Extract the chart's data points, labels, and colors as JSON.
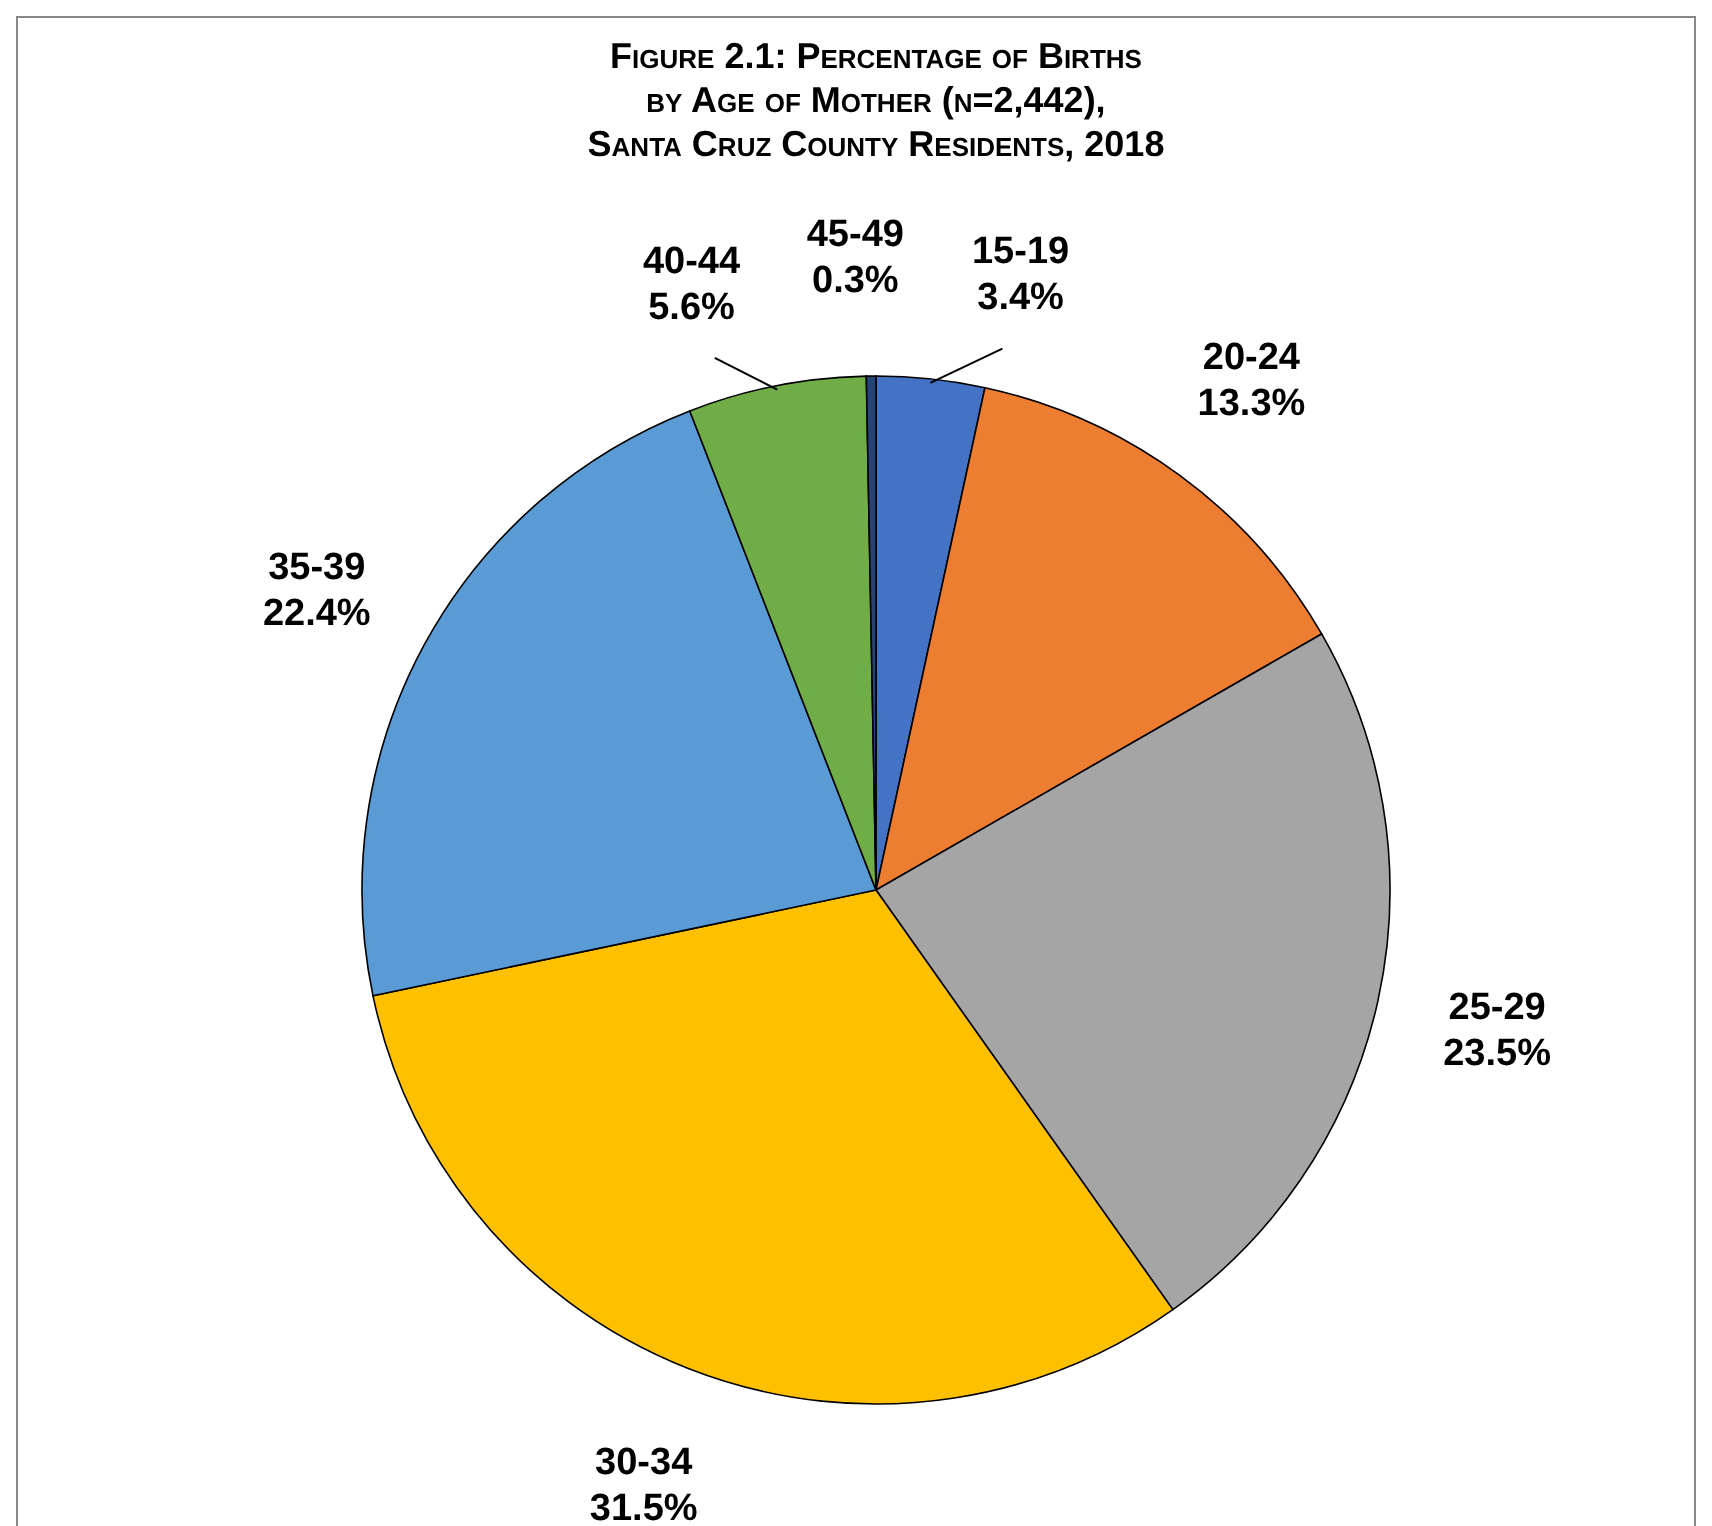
{
  "chart_data": {
    "type": "pie",
    "title": "Figure 2.1:  Percentage of Births\nby Age of Mother (n=2,442),\nSanta Cruz County Residents, 2018",
    "categories": [
      "15-19",
      "20-24",
      "25-29",
      "30-34",
      "35-39",
      "40-44",
      "45-49"
    ],
    "values": [
      3.4,
      13.3,
      23.5,
      31.5,
      22.4,
      5.6,
      0.3
    ],
    "value_labels": [
      "3.4%",
      "13.3%",
      "23.5%",
      "31.5%",
      "22.4%",
      "5.6%",
      "0.3%"
    ],
    "colors": [
      "#4472c4",
      "#ed7d31",
      "#a5a5a5",
      "#ffc000",
      "#5b9bd5",
      "#70ad47",
      "#264478"
    ]
  }
}
